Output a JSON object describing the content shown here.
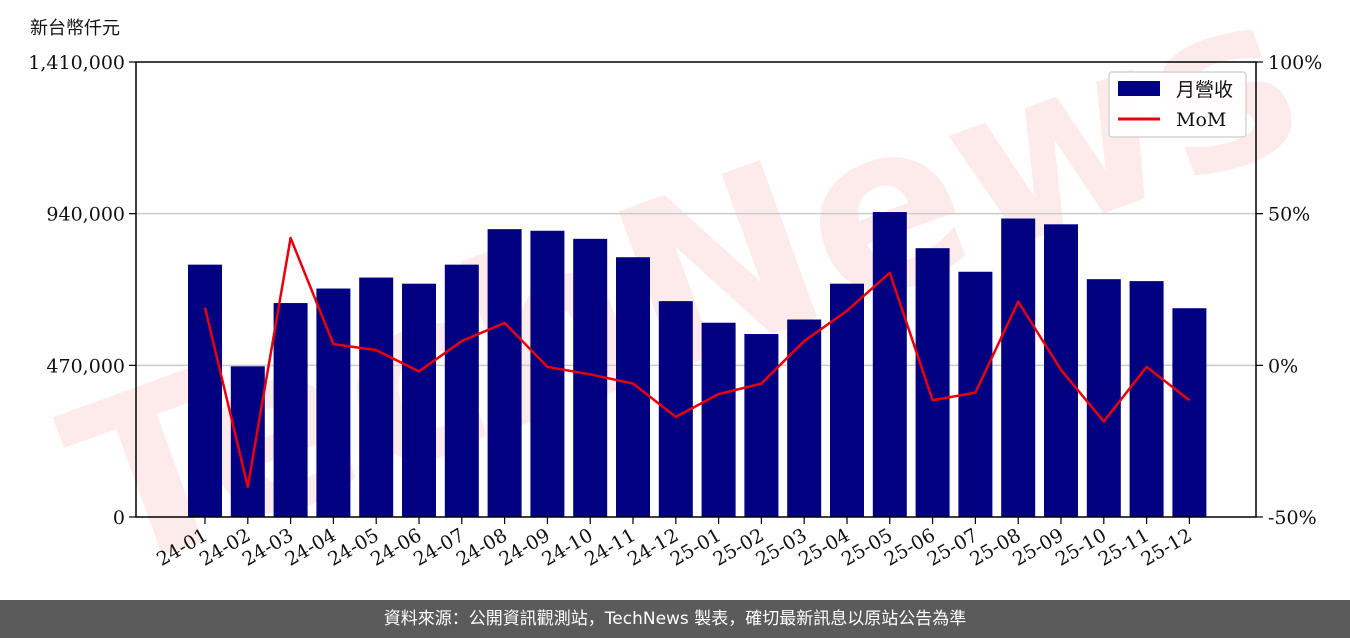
{
  "chart_data": {
    "type": "bar",
    "unit_label": "新台幣仟元",
    "categories": [
      "24-01",
      "24-02",
      "24-03",
      "24-04",
      "24-05",
      "24-06",
      "24-07",
      "24-08",
      "24-09",
      "24-10",
      "24-11",
      "24-12",
      "25-01",
      "25-02",
      "25-03",
      "25-04",
      "25-05",
      "25-06",
      "25-07",
      "25-08",
      "25-09",
      "25-10",
      "25-11",
      "25-12"
    ],
    "series": [
      {
        "name": "月營收",
        "axis": "left",
        "kind": "bar",
        "color": "#000080",
        "values": [
          782000,
          467000,
          663000,
          708000,
          742000,
          723000,
          782000,
          892000,
          887000,
          862000,
          805000,
          669000,
          602000,
          567000,
          612000,
          723000,
          945000,
          833000,
          760000,
          925000,
          907000,
          737000,
          731000,
          647000
        ]
      },
      {
        "name": "MoM",
        "axis": "right",
        "kind": "line",
        "color": "#e8000b",
        "values": [
          19,
          -40,
          42,
          7,
          5,
          -2,
          8,
          14,
          -0.5,
          -3,
          -6,
          -17,
          -9.5,
          -6,
          8,
          18,
          30.5,
          -11.5,
          -9,
          21,
          -1.5,
          -18.5,
          -0.5,
          -11.5
        ]
      }
    ],
    "y_left": {
      "ylim": [
        0,
        1410000
      ],
      "ticks": [
        0,
        470000,
        940000,
        1410000
      ],
      "tick_labels": [
        "0",
        "470,000",
        "940,000",
        "1,410,000"
      ]
    },
    "y_right": {
      "ylim": [
        -50,
        100
      ],
      "ticks": [
        -50,
        0,
        50,
        100
      ],
      "tick_labels": [
        "-50%",
        "0%",
        "50%",
        "100%"
      ]
    },
    "grid": "horizontal",
    "legend": "top-right",
    "watermark": "TechNews"
  },
  "footer": {
    "text": "資料來源：公開資訊觀測站，TechNews 製表，確切最新訊息以原站公告為準"
  },
  "colors": {
    "bar": "#000080",
    "line": "#e8000b",
    "footer_bg": "#5b5b5b",
    "grid": "#cccccc"
  }
}
